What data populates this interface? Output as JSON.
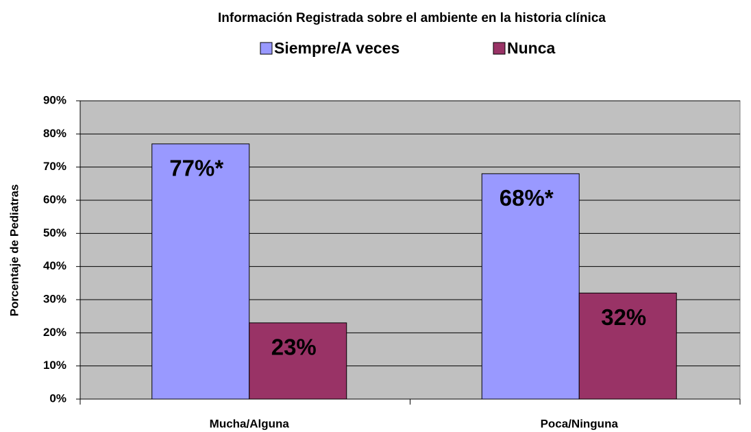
{
  "chart_data": {
    "type": "bar",
    "title": "Información Registrada sobre el ambiente en la historia clínica",
    "y_label": "Porcentaje de Pediatras",
    "categories": [
      "Mucha/Alguna",
      "Poca/Ninguna"
    ],
    "series": [
      {
        "name": "Siempre/A veces",
        "color": "#9999ff",
        "values": [
          77,
          68
        ],
        "value_labels": [
          "77%*",
          "68%*"
        ]
      },
      {
        "name": "Nunca",
        "color": "#993366",
        "values": [
          23,
          32
        ],
        "value_labels": [
          "23%",
          "32%"
        ]
      }
    ],
    "ylim": [
      0,
      90
    ],
    "yticks": [
      {
        "value": 0,
        "label": "0%"
      },
      {
        "value": 10,
        "label": "10%"
      },
      {
        "value": 20,
        "label": "20%"
      },
      {
        "value": 30,
        "label": "30%"
      },
      {
        "value": 40,
        "label": "40%"
      },
      {
        "value": 50,
        "label": "50%"
      },
      {
        "value": 60,
        "label": "60%"
      },
      {
        "value": 70,
        "label": "70%"
      },
      {
        "value": 80,
        "label": "80%"
      },
      {
        "value": 90,
        "label": "90%"
      }
    ],
    "grid": true,
    "legend": "top"
  }
}
